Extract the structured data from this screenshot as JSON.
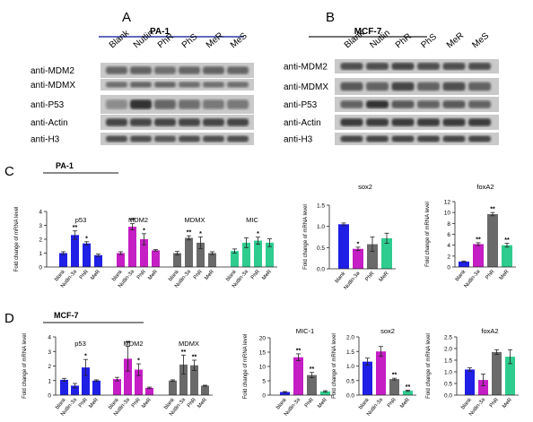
{
  "panels": {
    "A": {
      "letter": "A",
      "cell_line": "PA-1",
      "treatments": [
        "Blank",
        "Nutlin",
        "PhR",
        "PhS",
        "MeR",
        "MeS"
      ],
      "antibodies": [
        "anti-MDM2",
        "anti-MDMX",
        "anti-P53",
        "anti-Actin",
        "anti-H3"
      ]
    },
    "B": {
      "letter": "B",
      "cell_line": "MCF-7",
      "treatments": [
        "Blank",
        "Nutlin",
        "PhR",
        "PhS",
        "MeR",
        "MeS"
      ],
      "antibodies": [
        "anti-MDM2",
        "anti-MDMX",
        "anti-P53",
        "anti-Actin",
        "anti-H3"
      ]
    },
    "C": {
      "letter": "C",
      "cell_line": "PA-1"
    },
    "D": {
      "letter": "D",
      "cell_line": "MCF-7"
    }
  },
  "colors": {
    "blue": "#1f1fe6",
    "magenta": "#c41ec4",
    "gray": "#6a6a6a",
    "green": "#2ecc8e"
  },
  "chart_data": [
    {
      "id": "C-main",
      "type": "bar",
      "ylabel": "Fold change of mRNA level",
      "ylim": [
        0,
        4
      ],
      "yticks": [
        0,
        1,
        2,
        3,
        4
      ],
      "groups": [
        {
          "name": "p53",
          "categories": [
            "blank",
            "Nutlin-3a",
            "PhR",
            "MeR"
          ],
          "values": [
            1.0,
            2.3,
            1.7,
            0.85
          ],
          "errors": [
            0.1,
            0.3,
            0.12,
            0.08
          ],
          "sig": [
            "",
            "**",
            "*",
            ""
          ],
          "color": "#1f1fe6"
        },
        {
          "name": "MDM2",
          "categories": [
            "blank",
            "Nutlin-3a",
            "PhR",
            "MeR"
          ],
          "values": [
            1.0,
            2.9,
            2.0,
            1.2
          ],
          "errors": [
            0.1,
            0.22,
            0.4,
            0.05
          ],
          "sig": [
            "",
            "**",
            "*",
            ""
          ],
          "color": "#c41ec4"
        },
        {
          "name": "MDMX",
          "categories": [
            "blank",
            "Nutlin-3a",
            "PhR",
            "MeR"
          ],
          "values": [
            1.0,
            2.1,
            1.75,
            1.0
          ],
          "errors": [
            0.12,
            0.15,
            0.42,
            0.1
          ],
          "sig": [
            "",
            "**",
            "*",
            ""
          ],
          "color": "#6a6a6a"
        },
        {
          "name": "MIC",
          "categories": [
            "blank",
            "Nutlin-3a",
            "PhR",
            "MeR"
          ],
          "values": [
            1.15,
            1.75,
            1.9,
            1.75
          ],
          "errors": [
            0.15,
            0.35,
            0.25,
            0.28
          ],
          "sig": [
            "",
            "",
            "*",
            ""
          ],
          "color": "#2ecc8e"
        }
      ]
    },
    {
      "id": "C-sox2",
      "type": "bar",
      "title": "sox2",
      "ylabel": "Fold change of mRNA level",
      "ylim": [
        0,
        1.5
      ],
      "yticks": [
        0.0,
        0.5,
        1.0,
        1.5
      ],
      "categories": [
        "blank",
        "Nutlin-3a",
        "PhR",
        "MeR"
      ],
      "values": [
        1.05,
        0.47,
        0.58,
        0.72
      ],
      "errors": [
        0.03,
        0.04,
        0.17,
        0.12
      ],
      "sig": [
        "",
        "*",
        "",
        ""
      ],
      "colors": [
        "#1f1fe6",
        "#c41ec4",
        "#6a6a6a",
        "#2ecc8e"
      ]
    },
    {
      "id": "C-foxA2",
      "type": "bar",
      "title": "foxA2",
      "ylabel": "Fold change of mRNA level",
      "ylim": [
        0,
        12
      ],
      "yticks": [
        0,
        2,
        4,
        6,
        8,
        10,
        12
      ],
      "categories": [
        "blank",
        "Nutlin-3a",
        "PhR",
        "MeR"
      ],
      "values": [
        1.0,
        4.2,
        9.7,
        4.0
      ],
      "errors": [
        0.1,
        0.25,
        0.3,
        0.35
      ],
      "sig": [
        "",
        "**",
        "**",
        "**"
      ],
      "colors": [
        "#1f1fe6",
        "#c41ec4",
        "#6a6a6a",
        "#2ecc8e"
      ]
    },
    {
      "id": "D-main",
      "type": "bar",
      "ylabel": "Fold change of mRNA level",
      "ylim": [
        0,
        4
      ],
      "yticks": [
        0,
        1,
        2,
        3,
        4
      ],
      "groups": [
        {
          "name": "p53",
          "categories": [
            "blank",
            "Nutlin-3a",
            "PhR",
            "MeR"
          ],
          "values": [
            1.05,
            0.65,
            1.9,
            1.0
          ],
          "errors": [
            0.1,
            0.15,
            0.55,
            0.05
          ],
          "sig": [
            "",
            "",
            "*",
            ""
          ],
          "color": "#1f1fe6"
        },
        {
          "name": "MDM2",
          "categories": [
            "blank",
            "Nutlin-3a",
            "PhR",
            "MeR"
          ],
          "values": [
            1.1,
            2.5,
            1.75,
            0.5
          ],
          "errors": [
            0.12,
            0.85,
            0.4,
            0.05
          ],
          "sig": [
            "",
            "**",
            "*",
            ""
          ],
          "color": "#c41ec4"
        },
        {
          "name": "MDMX",
          "categories": [
            "blank",
            "Nutlin-3a",
            "PhR",
            "MeR"
          ],
          "values": [
            1.0,
            2.1,
            2.05,
            0.65
          ],
          "errors": [
            0.05,
            0.65,
            0.35,
            0.03
          ],
          "sig": [
            "",
            "**",
            "**",
            ""
          ],
          "color": "#6a6a6a"
        }
      ]
    },
    {
      "id": "D-MIC-1",
      "type": "bar",
      "title": "MIC-1",
      "ylabel": "Fold change of mRNA level",
      "ylim": [
        0,
        20
      ],
      "yticks": [
        0,
        5,
        10,
        15,
        20
      ],
      "categories": [
        "blank",
        "Nutlin-3a",
        "PhR",
        "MeR"
      ],
      "values": [
        1.1,
        13.2,
        7.0,
        1.3
      ],
      "errors": [
        0.15,
        1.2,
        0.9,
        0.25
      ],
      "sig": [
        "",
        "**",
        "**",
        ""
      ],
      "colors": [
        "#1f1fe6",
        "#c41ec4",
        "#6a6a6a",
        "#2ecc8e"
      ]
    },
    {
      "id": "D-sox2",
      "type": "bar",
      "title": "sox2",
      "ylabel": "Fold change of mRNA level",
      "ylim": [
        0,
        2.0
      ],
      "yticks": [
        0.0,
        0.5,
        1.0,
        1.5,
        2.0
      ],
      "categories": [
        "blank",
        "Nutlin-3a",
        "PhR",
        "MeR"
      ],
      "values": [
        1.15,
        1.5,
        0.55,
        0.15
      ],
      "errors": [
        0.12,
        0.17,
        0.03,
        0.02
      ],
      "sig": [
        "",
        "",
        "**",
        "**"
      ],
      "colors": [
        "#1f1fe6",
        "#c41ec4",
        "#6a6a6a",
        "#2ecc8e"
      ]
    },
    {
      "id": "D-foxA2",
      "type": "bar",
      "title": "foxA2",
      "ylabel": "Fold change of mRNA level",
      "ylim": [
        0,
        2.5
      ],
      "yticks": [
        0.0,
        0.5,
        1.0,
        1.5,
        2.0,
        2.5
      ],
      "categories": [
        "blank",
        "Nutlin-3a",
        "PhR",
        "MeR"
      ],
      "values": [
        1.1,
        0.65,
        1.85,
        1.65
      ],
      "errors": [
        0.07,
        0.25,
        0.1,
        0.3
      ],
      "sig": [
        "",
        "",
        "",
        ""
      ],
      "colors": [
        "#1f1fe6",
        "#c41ec4",
        "#6a6a6a",
        "#2ecc8e"
      ]
    }
  ]
}
